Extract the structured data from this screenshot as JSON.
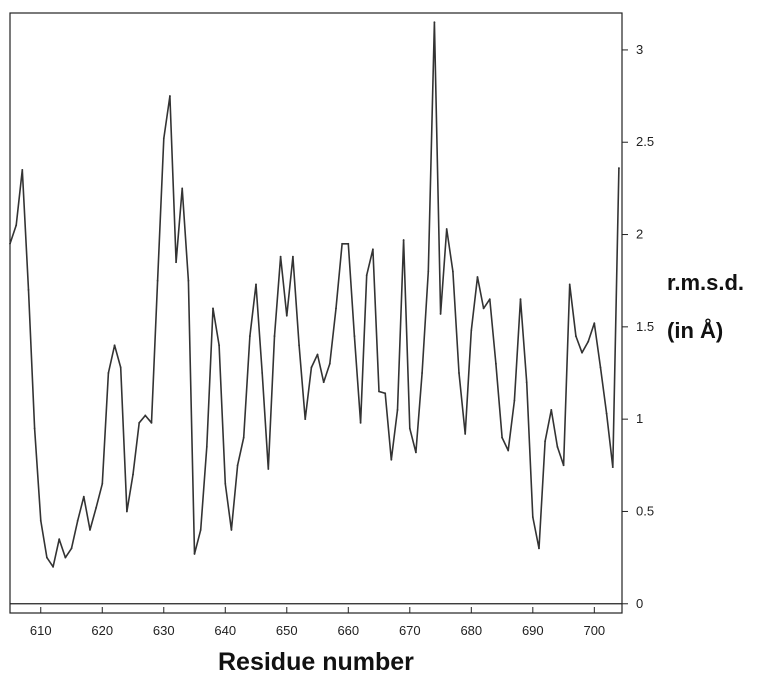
{
  "chart_data": {
    "type": "line",
    "title": "",
    "xlabel": "Residue number",
    "ylabel_line1": "r.m.s.d.",
    "ylabel_line2": "(in Å)",
    "xlim": [
      605,
      704.5
    ],
    "ylim": [
      -0.05,
      3.2
    ],
    "xticks": [
      610,
      620,
      630,
      640,
      650,
      660,
      670,
      680,
      690,
      700
    ],
    "yticks": [
      0,
      0.5,
      1,
      1.5,
      2,
      2.5,
      3
    ],
    "ytick_labels": [
      "0",
      "0.5",
      "1",
      "1.5",
      "2",
      "2.5",
      "3"
    ],
    "grid": false,
    "y_axis_side": "right",
    "line_color": "#333333",
    "series": [
      {
        "x": [
          605,
          606,
          607,
          608,
          609,
          610,
          611,
          612,
          613,
          614,
          615,
          616,
          617,
          618,
          619,
          620,
          621,
          622,
          623,
          624,
          625,
          626,
          627,
          628,
          629,
          630,
          631,
          632,
          633,
          634,
          635,
          636,
          637,
          638,
          639,
          640,
          641,
          642,
          643,
          644,
          645,
          646,
          647,
          648,
          649,
          650,
          651,
          652,
          653,
          654,
          655,
          656,
          657,
          658,
          659,
          660,
          661,
          662,
          663,
          664,
          665,
          666,
          667,
          668,
          669,
          670,
          671,
          672,
          673,
          674,
          675,
          676,
          677,
          678,
          679,
          680,
          681,
          682,
          683,
          684,
          685,
          686,
          687,
          688,
          689,
          690,
          691,
          692,
          693,
          694,
          695,
          696,
          697,
          698,
          699,
          700,
          701,
          702,
          703,
          704
        ],
        "values": [
          1.95,
          2.05,
          2.35,
          1.7,
          0.95,
          0.45,
          0.25,
          0.2,
          0.35,
          0.25,
          0.3,
          0.45,
          0.58,
          0.4,
          0.52,
          0.65,
          1.25,
          1.4,
          1.28,
          0.5,
          0.7,
          0.98,
          1.02,
          0.98,
          1.75,
          2.52,
          2.75,
          1.85,
          2.25,
          1.75,
          0.27,
          0.4,
          0.85,
          1.6,
          1.4,
          0.65,
          0.4,
          0.75,
          0.9,
          1.45,
          1.73,
          1.25,
          0.73,
          1.45,
          1.88,
          1.56,
          1.88,
          1.4,
          1.0,
          1.28,
          1.35,
          1.2,
          1.3,
          1.6,
          1.95,
          1.95,
          1.45,
          0.98,
          1.78,
          1.92,
          1.15,
          1.14,
          0.78,
          1.05,
          1.97,
          0.95,
          0.82,
          1.25,
          1.8,
          3.15,
          1.57,
          2.03,
          1.8,
          1.25,
          0.92,
          1.48,
          1.77,
          1.6,
          1.65,
          1.3,
          0.9,
          0.83,
          1.1,
          1.65,
          1.2,
          0.47,
          0.3,
          0.88,
          1.05,
          0.85,
          0.75,
          1.73,
          1.45,
          1.36,
          1.42,
          1.52,
          1.28,
          1.03,
          0.74,
          2.36
        ]
      }
    ]
  }
}
